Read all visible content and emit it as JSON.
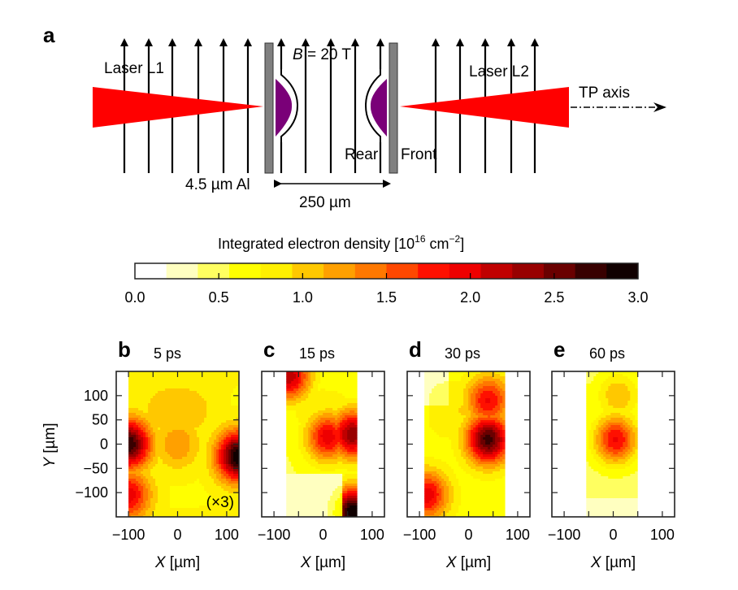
{
  "figure": {
    "panel_a": {
      "letter": "a",
      "laser_left_label": "Laser L1",
      "laser_right_label": "Laser L2",
      "field_label_var": "B",
      "field_label_value": " = 20 T",
      "rear_label": "Rear",
      "front_label": "Front",
      "foil_label": "4.5 µm Al",
      "separation_label": "250 µm",
      "axis_label": "TP axis",
      "colors": {
        "laser": "#ff0000",
        "plasma": "#7a0078",
        "foil": "#808080",
        "field_lines": "#000000"
      }
    },
    "colorbar": {
      "title_main": "Integrated electron density [10",
      "title_exp1": "16",
      "title_mid": " cm",
      "title_exp2": "−2",
      "title_end": "]",
      "min": 0.0,
      "max": 3.0,
      "ticks": [
        "0.0",
        "0.5",
        "1.0",
        "1.5",
        "2.0",
        "2.5",
        "3.0"
      ],
      "levels": [
        "#ffffff",
        "#ffffc0",
        "#ffff60",
        "#ffff00",
        "#fff000",
        "#ffc800",
        "#ffa000",
        "#ff7800",
        "#ff4800",
        "#ff1000",
        "#ee0000",
        "#c00000",
        "#980000",
        "#6a0000",
        "#380000",
        "#100000"
      ]
    }
  },
  "chart_data": [
    {
      "type": "heatmap",
      "panel": "b",
      "title": "5 ps",
      "annotation": "(×3)",
      "xlabel": "X [µm]",
      "ylabel": "Y [µm]",
      "xlim": [
        -125,
        125
      ],
      "ylim": [
        -150,
        150
      ],
      "xticks": [
        "−100",
        "0",
        "100"
      ],
      "yticks": [
        "100",
        "50",
        "0",
        "−50",
        "−100"
      ],
      "data_extent_x": [
        -100,
        125
      ],
      "peaks": [
        {
          "x": -100,
          "y": 0,
          "value": 2.8
        },
        {
          "x": 125,
          "y": -25,
          "value": 3.0
        },
        {
          "x": -100,
          "y": -105,
          "value": 2.0
        },
        {
          "x": 0,
          "y": 0,
          "value": 1.3
        }
      ],
      "background_value": 0.8
    },
    {
      "type": "heatmap",
      "panel": "c",
      "title": "15 ps",
      "xlabel": "X [µm]",
      "xlim": [
        -125,
        125
      ],
      "ylim": [
        -150,
        150
      ],
      "xticks": [
        "−100",
        "0",
        "100"
      ],
      "data_extent_x": [
        -75,
        65
      ],
      "peaks": [
        {
          "x": 60,
          "y": 20,
          "value": 2.4
        },
        {
          "x": 10,
          "y": 15,
          "value": 2.0
        },
        {
          "x": 62,
          "y": -140,
          "value": 3.0
        },
        {
          "x": -70,
          "y": 140,
          "value": 2.2
        }
      ],
      "background_value": 0.6
    },
    {
      "type": "heatmap",
      "panel": "d",
      "title": "30 ps",
      "xlabel": "X [µm]",
      "xlim": [
        -125,
        125
      ],
      "ylim": [
        -150,
        150
      ],
      "xticks": [
        "−100",
        "0",
        "100"
      ],
      "data_extent_x": [
        -90,
        70
      ],
      "peaks": [
        {
          "x": 40,
          "y": 10,
          "value": 2.7
        },
        {
          "x": 40,
          "y": 90,
          "value": 1.9
        },
        {
          "x": -85,
          "y": -105,
          "value": 2.0
        }
      ],
      "background_value": 0.7
    },
    {
      "type": "heatmap",
      "panel": "e",
      "title": "60 ps",
      "xlabel": "X [µm]",
      "xlim": [
        -125,
        125
      ],
      "ylim": [
        -150,
        150
      ],
      "xticks": [
        "−100",
        "0",
        "100"
      ],
      "data_extent_x": [
        -55,
        45
      ],
      "peaks": [
        {
          "x": 5,
          "y": 10,
          "value": 1.9
        },
        {
          "x": 10,
          "y": 100,
          "value": 1.1
        }
      ],
      "background_value": 0.5
    }
  ]
}
